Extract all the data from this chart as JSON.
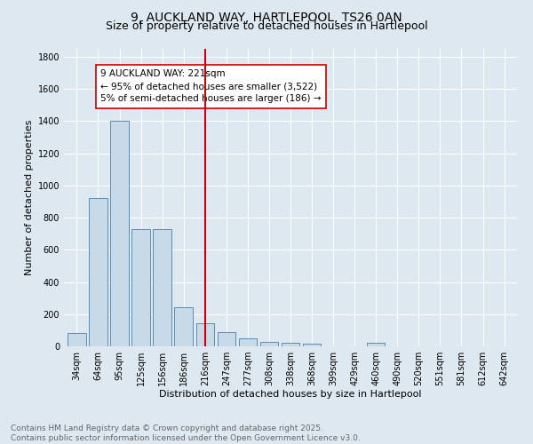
{
  "title1": "9, AUCKLAND WAY, HARTLEPOOL, TS26 0AN",
  "title2": "Size of property relative to detached houses in Hartlepool",
  "xlabel": "Distribution of detached houses by size in Hartlepool",
  "ylabel": "Number of detached properties",
  "bin_labels": [
    "34sqm",
    "64sqm",
    "95sqm",
    "125sqm",
    "156sqm",
    "186sqm",
    "216sqm",
    "247sqm",
    "277sqm",
    "308sqm",
    "338sqm",
    "368sqm",
    "399sqm",
    "429sqm",
    "460sqm",
    "490sqm",
    "520sqm",
    "551sqm",
    "581sqm",
    "612sqm",
    "642sqm"
  ],
  "bar_values": [
    85,
    920,
    1400,
    730,
    730,
    245,
    145,
    90,
    50,
    30,
    20,
    15,
    0,
    0,
    20,
    0,
    0,
    0,
    0,
    0,
    0
  ],
  "bar_color": "#c8d9e8",
  "bar_edge_color": "#5a8db5",
  "vline_x": 6.0,
  "vline_color": "#cc0000",
  "annotation_text": "9 AUCKLAND WAY: 221sqm\n← 95% of detached houses are smaller (3,522)\n5% of semi-detached houses are larger (186) →",
  "annotation_box_color": "#ffffff",
  "annotation_box_edge_color": "#cc0000",
  "ylim": [
    0,
    1850
  ],
  "yticks": [
    0,
    200,
    400,
    600,
    800,
    1000,
    1200,
    1400,
    1600,
    1800
  ],
  "background_color": "#dde8f0",
  "footer_text": "Contains HM Land Registry data © Crown copyright and database right 2025.\nContains public sector information licensed under the Open Government Licence v3.0.",
  "title_fontsize": 10,
  "subtitle_fontsize": 9,
  "axis_label_fontsize": 8,
  "tick_fontsize": 7,
  "annotation_fontsize": 7.5,
  "footer_fontsize": 6.5
}
